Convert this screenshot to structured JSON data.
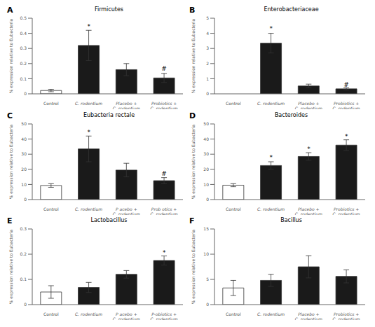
{
  "chart_data": [
    {
      "type": "bar",
      "panel_label": "A",
      "title": "Firmicutes",
      "ylabel": "% expression relative to Eubacteria",
      "categories": [
        "Control",
        "C. rodentium",
        "Placebo +\nC. rodentium",
        "Probiotics +\nC. rodentium"
      ],
      "values": [
        0.022,
        0.32,
        0.16,
        0.105
      ],
      "errors": [
        0.008,
        0.1,
        0.04,
        0.03
      ],
      "colors": [
        "white",
        "#1a1a1a",
        "#1a1a1a",
        "#1a1a1a"
      ],
      "ylim": [
        0,
        0.5
      ],
      "yticks": [
        0,
        0.1,
        0.2,
        0.3,
        0.4,
        0.5
      ],
      "annotations": [
        {
          "text": "*",
          "x": "C. rodentium",
          "y": 0.4275
        },
        {
          "text": "#",
          "x": "Probiotics +\nC. rodentium",
          "y": 0.1475
        }
      ]
    },
    {
      "type": "bar",
      "panel_label": "B",
      "title": "Enterobacteriaceae",
      "ylabel": "% expression relative to Eubacteria",
      "categories": [
        "Control",
        "C. rodentium",
        "Placebo +\nC. rodentium",
        "Probiotics +\nC. rodentium"
      ],
      "values": [
        0.0,
        3.35,
        0.52,
        0.33
      ],
      "errors": [
        0.0,
        0.65,
        0.12,
        0.07
      ],
      "colors": [
        "white",
        "#1a1a1a",
        "#1a1a1a",
        "#1a1a1a"
      ],
      "ylim": [
        0,
        5
      ],
      "yticks": [
        0,
        1,
        2,
        3,
        4,
        5
      ],
      "annotations": [
        {
          "text": "*",
          "x": "C. rodentium",
          "y": 4.1
        },
        {
          "text": "#",
          "x": "Probiotics +\nC. rodentium",
          "y": 0.425
        }
      ]
    },
    {
      "type": "bar",
      "panel_label": "C",
      "title": "Eubacteria rectale",
      "ylabel": "% expression relative to Eubacteria",
      "categories": [
        "Control",
        "C. rodentium",
        "P acebo +\nC. rodentium",
        "Prob otics +\nC. rodentium"
      ],
      "values": [
        9.3,
        33.5,
        19.5,
        12.5
      ],
      "errors": [
        1.2,
        8.5,
        4.5,
        2.0
      ],
      "colors": [
        "white",
        "#1a1a1a",
        "#1a1a1a",
        "#1a1a1a"
      ],
      "ylim": [
        0,
        50
      ],
      "yticks": [
        0,
        10,
        20,
        30,
        40,
        50
      ],
      "annotations": [
        {
          "text": "*",
          "x": "C. rodentium",
          "y": 42.75
        },
        {
          "text": "#",
          "x": "Prob otics +\nC. rodentium",
          "y": 15.25
        }
      ]
    },
    {
      "type": "bar",
      "panel_label": "D",
      "title": "Bacteroides",
      "ylabel": "% expression relative to Eubacteria",
      "categories": [
        "Control",
        "C. rodentium",
        "Placebo +\nC. rodentium",
        "Probiotics +\nC. rodentium"
      ],
      "values": [
        9.5,
        22.5,
        28.5,
        36.0
      ],
      "errors": [
        1.0,
        2.5,
        2.5,
        3.5
      ],
      "colors": [
        "white",
        "#1a1a1a",
        "#1a1a1a",
        "#1a1a1a"
      ],
      "ylim": [
        0,
        50
      ],
      "yticks": [
        0,
        10,
        20,
        30,
        40,
        50
      ],
      "annotations": [
        {
          "text": "*",
          "x": "C. rodentium",
          "y": 26
        },
        {
          "text": "*",
          "x": "Placebo +\nC. rodentium",
          "y": 31.5
        },
        {
          "text": "*",
          "x": "Probiotics +\nC. rodentium",
          "y": 40
        }
      ]
    },
    {
      "type": "bar",
      "panel_label": "E",
      "title": "Lactobacillus",
      "ylabel": "% expression relative to Eubacteria",
      "categories": [
        "Control",
        "C. rodentium",
        "P acebo +\nC. rodentium",
        "P-obiotics +\nC. rodentium"
      ],
      "values": [
        0.05,
        0.068,
        0.12,
        0.175
      ],
      "errors": [
        0.025,
        0.02,
        0.015,
        0.018
      ],
      "colors": [
        "white",
        "#1a1a1a",
        "#1a1a1a",
        "#1a1a1a"
      ],
      "ylim": [
        0,
        0.3
      ],
      "yticks": [
        0,
        0.1,
        0.2,
        0.3
      ],
      "annotations": [
        {
          "text": "*",
          "x": "P-obiotics +\nC. rodentium",
          "y": 0.195
        }
      ]
    },
    {
      "type": "bar",
      "panel_label": "F",
      "title": "Bacillus",
      "ylabel": "% expression relative to Eubacteria",
      "categories": [
        "Control",
        "C. rodentium",
        "Placebo +\nC. rodentium",
        "Probiotics +\nC. rodentium"
      ],
      "values": [
        3.3,
        4.8,
        7.5,
        5.6
      ],
      "errors": [
        1.5,
        1.2,
        2.2,
        1.3
      ],
      "colors": [
        "white",
        "#1a1a1a",
        "#1a1a1a",
        "#1a1a1a"
      ],
      "ylim": [
        0,
        15
      ],
      "yticks": [
        0,
        5,
        10,
        15
      ],
      "annotations": []
    }
  ]
}
